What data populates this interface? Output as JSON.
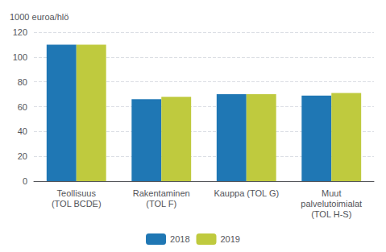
{
  "chart_data": {
    "type": "bar",
    "ylabel": "1000 euroa/hlö",
    "categories": [
      "Teollisuus\n(TOL BCDE)",
      "Rakentaminen\n(TOL F)",
      "Kauppa (TOL G)",
      "Muut\npalvelutoimialat\n(TOL H-S)"
    ],
    "series": [
      {
        "name": "2018",
        "color": "#1F77B4",
        "values": [
          110,
          66,
          70,
          69
        ]
      },
      {
        "name": "2019",
        "color": "#BFCA3E",
        "values": [
          110,
          68,
          70,
          71
        ]
      }
    ],
    "ylim": [
      0,
      120
    ],
    "yticks": [
      0,
      20,
      40,
      60,
      80,
      100,
      120
    ],
    "grid": true,
    "legend": "bottom"
  }
}
